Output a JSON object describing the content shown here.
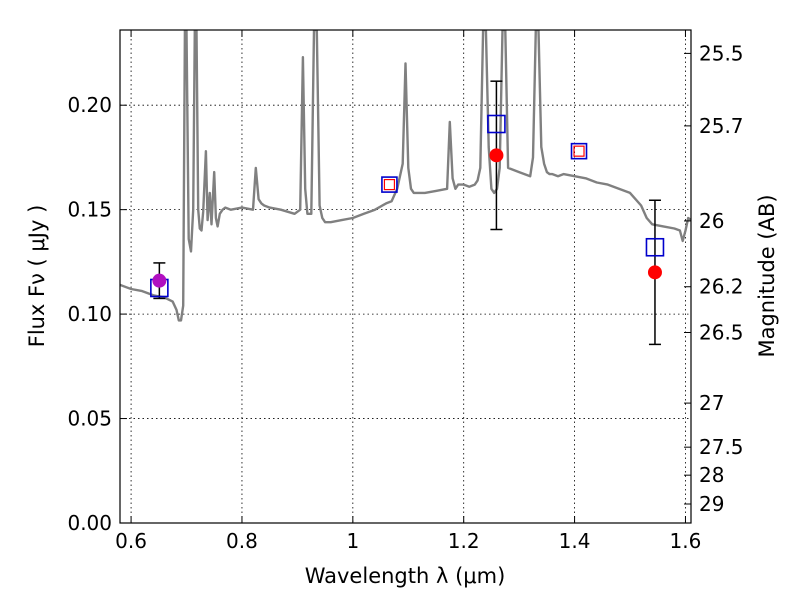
{
  "chart_data": {
    "type": "scatter",
    "xlabel": "Wavelength  λ (μm)",
    "ylabel": "Flux  Fν  ( μJy )",
    "ylabel_right": "Magnitude (AB)",
    "xlim": [
      0.58,
      1.61
    ],
    "ylim": [
      0.0,
      0.236
    ],
    "grid": true,
    "x_ticks": [
      {
        "value": 0.6,
        "label": "0.6"
      },
      {
        "value": 0.8,
        "label": "0.8"
      },
      {
        "value": 1.0,
        "label": "1"
      },
      {
        "value": 1.2,
        "label": "1.2"
      },
      {
        "value": 1.4,
        "label": "1.4"
      },
      {
        "value": 1.6,
        "label": "1.6"
      }
    ],
    "y_ticks": [
      {
        "value": 0.0,
        "label": "0.00"
      },
      {
        "value": 0.05,
        "label": "0.05"
      },
      {
        "value": 0.1,
        "label": "0.10"
      },
      {
        "value": 0.15,
        "label": "0.15"
      },
      {
        "value": 0.2,
        "label": "0.20"
      }
    ],
    "mag_ticks": [
      {
        "flux": 0.2248,
        "label": "25.5"
      },
      {
        "flux": 0.1901,
        "label": "25.7"
      },
      {
        "flux": 0.1446,
        "label": "26"
      },
      {
        "flux": 0.1131,
        "label": "26.2"
      },
      {
        "flux": 0.0912,
        "label": "26.5"
      },
      {
        "flux": 0.0574,
        "label": "27"
      },
      {
        "flux": 0.0363,
        "label": "27.5"
      },
      {
        "flux": 0.0229,
        "label": "28"
      },
      {
        "flux": 0.0091,
        "label": "29"
      }
    ],
    "series": [
      {
        "kind": "sed_model",
        "color": "#808080",
        "x": [
          0.58,
          0.6,
          0.62,
          0.64,
          0.66,
          0.675,
          0.682,
          0.686,
          0.69,
          0.694,
          0.697,
          0.7,
          0.704,
          0.708,
          0.712,
          0.715,
          0.718,
          0.721,
          0.724,
          0.727,
          0.73,
          0.735,
          0.738,
          0.742,
          0.745,
          0.75,
          0.753,
          0.756,
          0.76,
          0.765,
          0.77,
          0.78,
          0.8,
          0.82,
          0.825,
          0.83,
          0.835,
          0.84,
          0.85,
          0.87,
          0.895,
          0.905,
          0.91,
          0.914,
          0.918,
          0.925,
          0.93,
          0.935,
          0.94,
          0.945,
          0.95,
          0.96,
          0.98,
          1.0,
          1.02,
          1.04,
          1.06,
          1.07,
          1.08,
          1.09,
          1.095,
          1.1,
          1.105,
          1.11,
          1.13,
          1.15,
          1.17,
          1.175,
          1.18,
          1.185,
          1.19,
          1.2,
          1.21,
          1.22,
          1.225,
          1.23,
          1.235,
          1.24,
          1.245,
          1.25,
          1.255,
          1.26,
          1.265,
          1.27,
          1.275,
          1.28,
          1.3,
          1.32,
          1.325,
          1.33,
          1.335,
          1.34,
          1.345,
          1.35,
          1.355,
          1.36,
          1.37,
          1.38,
          1.4,
          1.42,
          1.44,
          1.46,
          1.48,
          1.5,
          1.52,
          1.53,
          1.54,
          1.56,
          1.58,
          1.59,
          1.595,
          1.6,
          1.605,
          1.61
        ],
        "y": [
          0.114,
          0.112,
          0.111,
          0.109,
          0.108,
          0.106,
          0.102,
          0.097,
          0.097,
          0.104,
          0.236,
          0.236,
          0.136,
          0.13,
          0.15,
          0.236,
          0.236,
          0.15,
          0.141,
          0.14,
          0.149,
          0.178,
          0.145,
          0.158,
          0.143,
          0.168,
          0.146,
          0.142,
          0.148,
          0.15,
          0.151,
          0.15,
          0.151,
          0.15,
          0.17,
          0.155,
          0.153,
          0.152,
          0.151,
          0.15,
          0.148,
          0.15,
          0.223,
          0.16,
          0.148,
          0.148,
          0.236,
          0.236,
          0.152,
          0.146,
          0.144,
          0.144,
          0.145,
          0.146,
          0.148,
          0.15,
          0.153,
          0.154,
          0.16,
          0.172,
          0.22,
          0.17,
          0.16,
          0.158,
          0.158,
          0.159,
          0.16,
          0.192,
          0.165,
          0.16,
          0.162,
          0.162,
          0.161,
          0.162,
          0.164,
          0.17,
          0.236,
          0.236,
          0.18,
          0.16,
          0.158,
          0.16,
          0.17,
          0.236,
          0.236,
          0.17,
          0.168,
          0.166,
          0.175,
          0.236,
          0.236,
          0.18,
          0.172,
          0.168,
          0.167,
          0.167,
          0.166,
          0.167,
          0.166,
          0.165,
          0.163,
          0.162,
          0.16,
          0.158,
          0.152,
          0.146,
          0.143,
          0.142,
          0.141,
          0.14,
          0.135,
          0.14,
          0.146,
          0.145
        ]
      },
      {
        "kind": "model_photometry",
        "marker": "square",
        "color": "#0000cc",
        "points": [
          {
            "x": 0.651,
            "y": 0.1125,
            "size": "large"
          },
          {
            "x": 1.066,
            "y": 0.162,
            "size": "small"
          },
          {
            "x": 1.259,
            "y": 0.191,
            "size": "large"
          },
          {
            "x": 1.408,
            "y": 0.178,
            "size": "small"
          },
          {
            "x": 1.545,
            "y": 0.132,
            "size": "large"
          }
        ]
      },
      {
        "kind": "observed",
        "marker": "circle",
        "color": "#ff0000",
        "points": [
          {
            "x": 0.651,
            "y": 0.116,
            "err": 0.0085,
            "color": "#b010c0"
          },
          {
            "x": 1.066,
            "y": 0.162
          },
          {
            "x": 1.259,
            "y": 0.176,
            "err": 0.0355
          },
          {
            "x": 1.408,
            "y": 0.178
          },
          {
            "x": 1.545,
            "y": 0.12,
            "err": 0.0345
          }
        ]
      }
    ]
  }
}
